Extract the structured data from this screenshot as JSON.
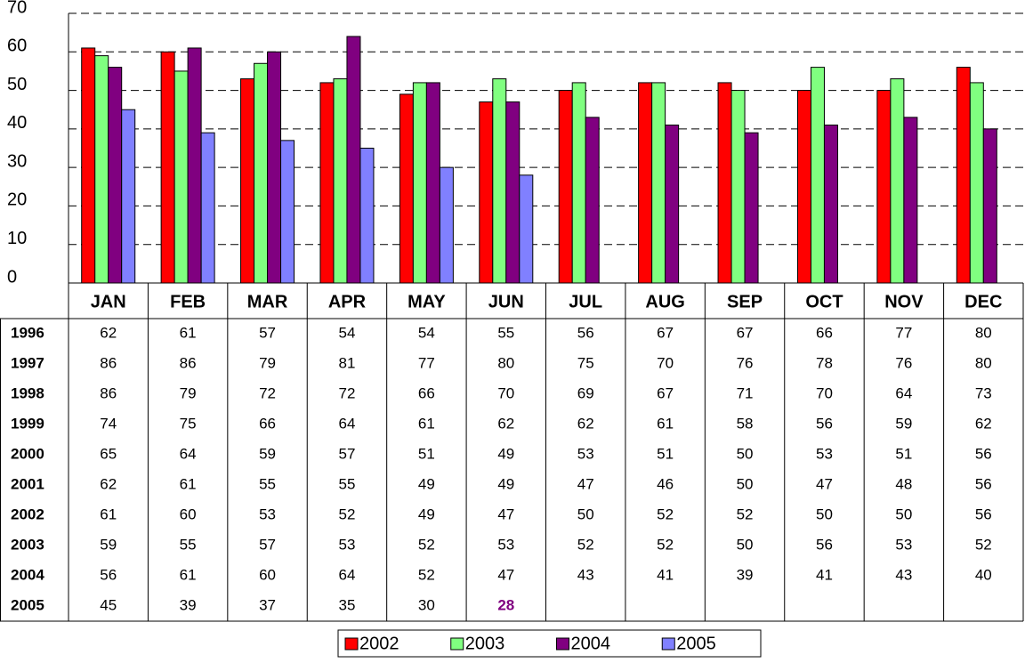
{
  "chart_data": {
    "type": "bar",
    "categories": [
      "JAN",
      "FEB",
      "MAR",
      "APR",
      "MAY",
      "JUN",
      "JUL",
      "AUG",
      "SEP",
      "OCT",
      "NOV",
      "DEC"
    ],
    "series": [
      {
        "name": "2002",
        "color": "#ff0000",
        "values": [
          61,
          60,
          53,
          52,
          49,
          47,
          50,
          52,
          52,
          50,
          50,
          56
        ]
      },
      {
        "name": "2003",
        "color": "#80ff80",
        "values": [
          59,
          55,
          57,
          53,
          52,
          53,
          52,
          52,
          50,
          56,
          53,
          52
        ]
      },
      {
        "name": "2004",
        "color": "#800080",
        "values": [
          56,
          61,
          60,
          64,
          52,
          47,
          43,
          41,
          39,
          41,
          43,
          40
        ]
      },
      {
        "name": "2005",
        "color": "#8080ff",
        "values": [
          45,
          39,
          37,
          35,
          30,
          28,
          null,
          null,
          null,
          null,
          null,
          null
        ]
      }
    ],
    "table_rows": [
      {
        "name": "1996",
        "values": [
          62,
          61,
          57,
          54,
          54,
          55,
          56,
          67,
          67,
          66,
          77,
          80
        ]
      },
      {
        "name": "1997",
        "values": [
          86,
          86,
          79,
          81,
          77,
          80,
          75,
          70,
          76,
          78,
          76,
          80
        ]
      },
      {
        "name": "1998",
        "values": [
          86,
          79,
          72,
          72,
          66,
          70,
          69,
          67,
          71,
          70,
          64,
          73
        ]
      },
      {
        "name": "1999",
        "values": [
          74,
          75,
          66,
          64,
          61,
          62,
          62,
          61,
          58,
          56,
          59,
          62
        ]
      },
      {
        "name": "2000",
        "values": [
          65,
          64,
          59,
          57,
          51,
          49,
          53,
          51,
          50,
          53,
          51,
          56
        ]
      },
      {
        "name": "2001",
        "values": [
          62,
          61,
          55,
          55,
          49,
          49,
          47,
          46,
          50,
          47,
          48,
          56
        ]
      }
    ],
    "ylim": [
      0,
      70
    ],
    "yticks": [
      0,
      10,
      20,
      30,
      40,
      50,
      60,
      70
    ],
    "grid": true
  }
}
